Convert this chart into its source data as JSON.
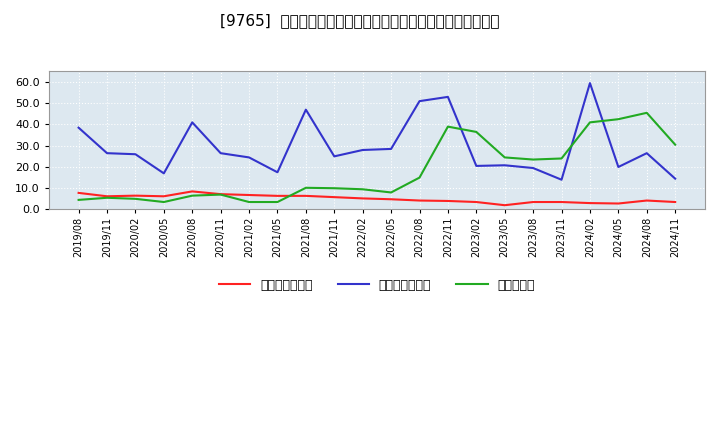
{
  "title": "[9765]  売上債権回転率、買入債務回転率、在庫回転率の推移",
  "x_labels": [
    "2019/08",
    "2019/11",
    "2020/02",
    "2020/05",
    "2020/08",
    "2020/11",
    "2021/02",
    "2021/05",
    "2021/08",
    "2021/11",
    "2022/02",
    "2022/05",
    "2022/08",
    "2022/11",
    "2023/02",
    "2023/05",
    "2023/08",
    "2023/11",
    "2024/02",
    "2024/05",
    "2024/08",
    "2024/11"
  ],
  "売上債権回転率": [
    7.8,
    6.2,
    6.5,
    6.2,
    8.5,
    7.2,
    6.8,
    6.4,
    6.4,
    5.8,
    5.2,
    4.8,
    4.2,
    4.0,
    3.5,
    2.0,
    3.5,
    3.5,
    3.0,
    2.8,
    4.2,
    3.5
  ],
  "買入債務回転率": [
    38.5,
    26.5,
    26.0,
    17.0,
    41.0,
    26.5,
    24.5,
    17.5,
    47.0,
    25.0,
    28.0,
    28.5,
    51.0,
    53.0,
    20.5,
    20.8,
    19.5,
    14.0,
    59.5,
    20.0,
    26.5,
    14.5
  ],
  "在庫回転率": [
    4.5,
    5.5,
    5.0,
    3.5,
    6.5,
    7.0,
    3.5,
    3.5,
    10.2,
    10.0,
    9.5,
    8.0,
    15.0,
    39.0,
    36.5,
    24.5,
    23.5,
    24.0,
    41.0,
    42.5,
    45.5,
    30.5
  ],
  "line_colors": {
    "売上債権回転率": "#ff2222",
    "買入債務回転率": "#3333cc",
    "在庫回転率": "#22aa22"
  },
  "ylim": [
    0.0,
    65.0
  ],
  "yticks": [
    0.0,
    10.0,
    20.0,
    30.0,
    40.0,
    50.0,
    60.0
  ],
  "background_color": "#ffffff",
  "plot_bg_color": "#dde8f0",
  "grid_color": "#ffffff",
  "title_fontsize": 11,
  "legend_labels": [
    "売上債権回転率",
    "買入債務回転率",
    "在庫回転率"
  ]
}
